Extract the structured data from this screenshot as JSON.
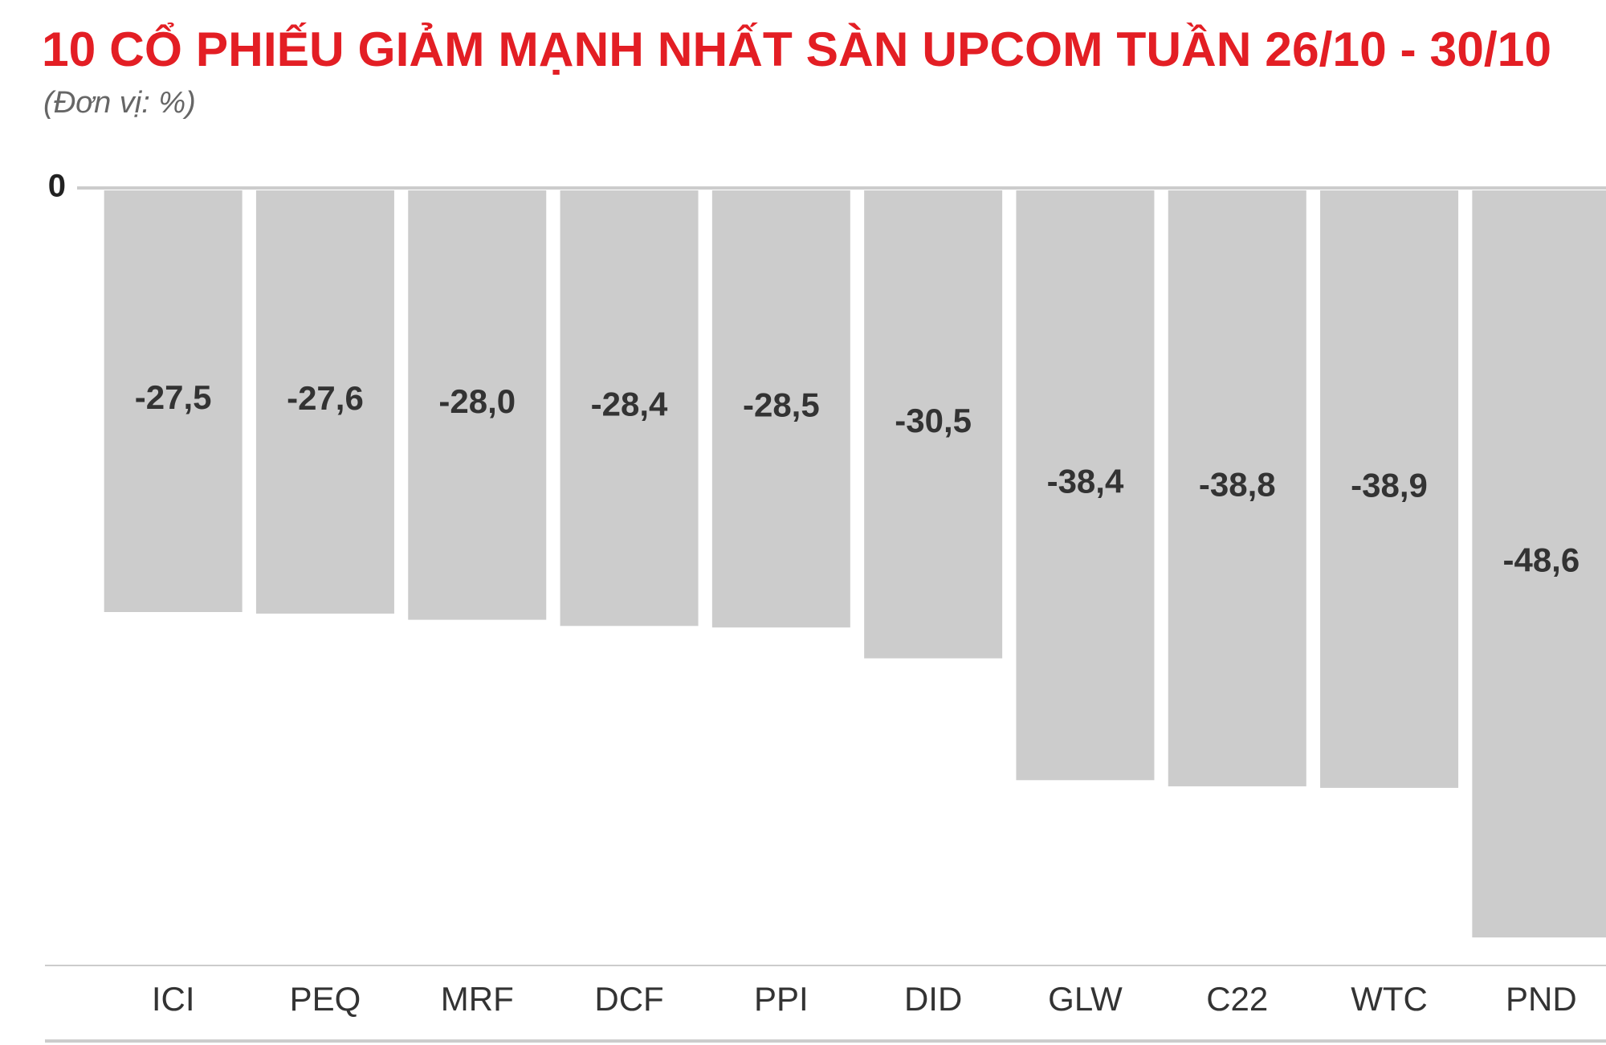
{
  "chart_data": {
    "type": "bar",
    "title": "10 CỔ PHIẾU GIẢM MẠNH NHẤT SÀN UPCOM TUẦN 26/10 - 30/10",
    "subtitle": "(Đơn vị: %)",
    "categories": [
      "ICI",
      "PEQ",
      "MRF",
      "DCF",
      "PPI",
      "DID",
      "GLW",
      "C22",
      "WTC",
      "PND"
    ],
    "values": [
      -27.5,
      -27.6,
      -28.0,
      -28.4,
      -28.5,
      -30.5,
      -38.4,
      -38.8,
      -38.9,
      -48.6
    ],
    "value_labels": [
      "-27,5",
      "-27,6",
      "-28,0",
      "-28,4",
      "-28,5",
      "-30,5",
      "-38,4",
      "-38,8",
      "-38,9",
      "-48,6"
    ],
    "color": "#cccccc",
    "ylim": [
      -50,
      0
    ],
    "yticks": [
      0
    ]
  }
}
